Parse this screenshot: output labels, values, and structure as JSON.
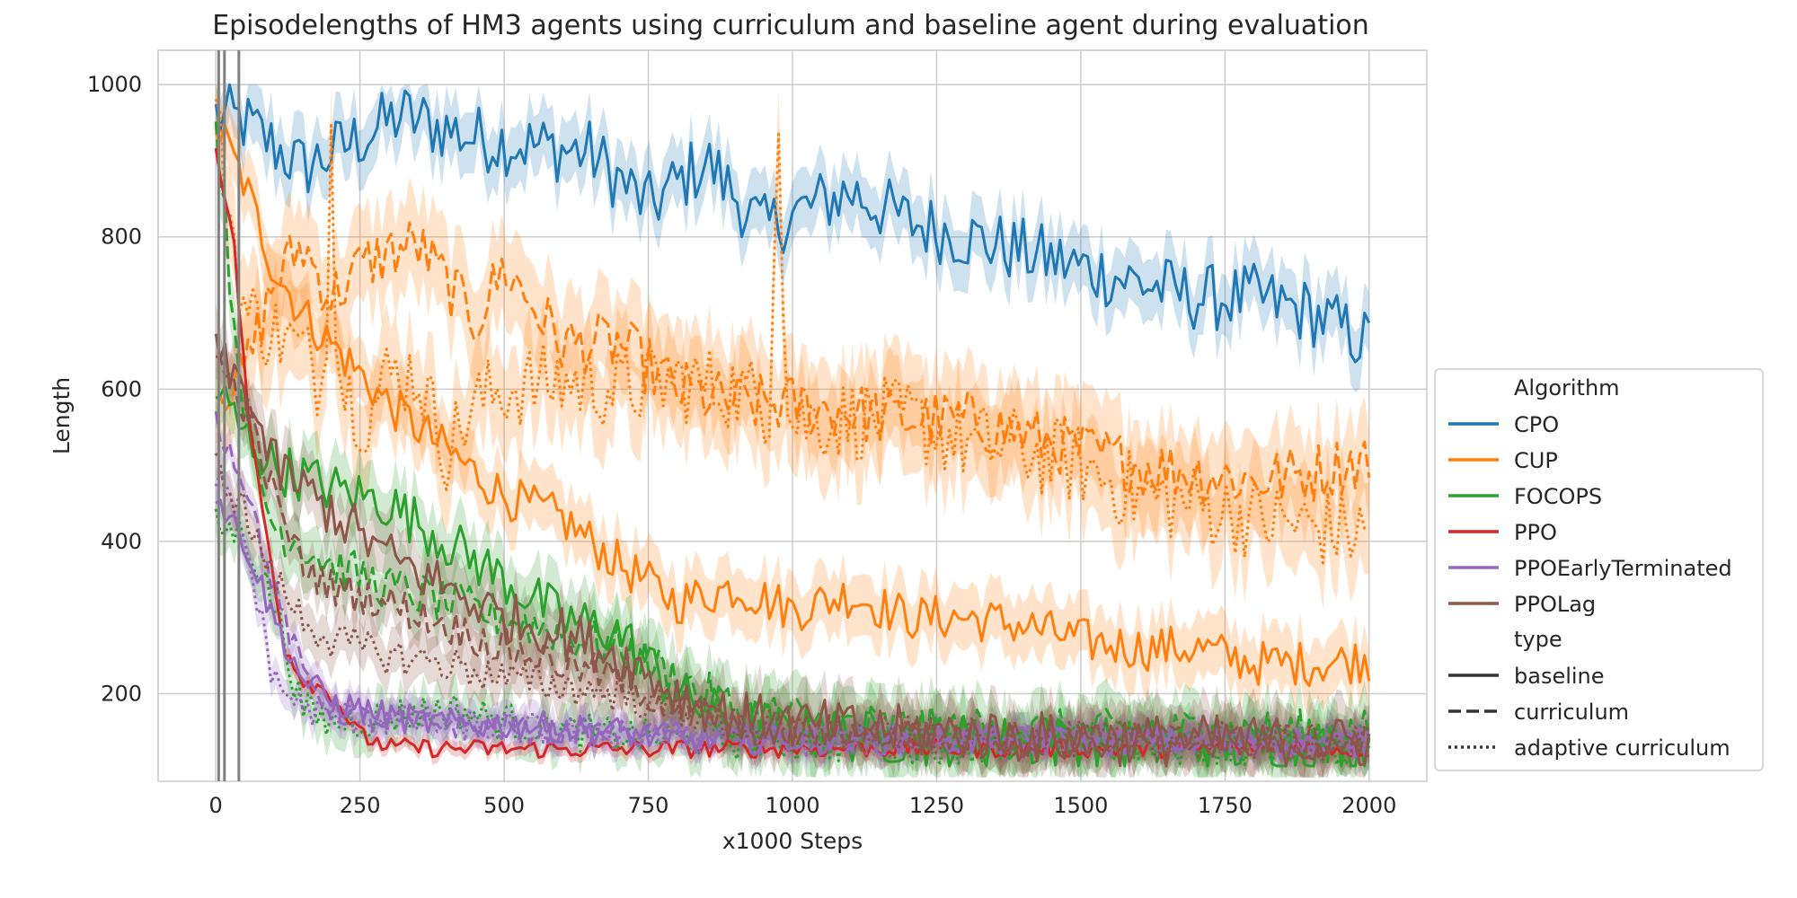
{
  "chart_data": {
    "type": "line",
    "title": "Episodelengths of HM3 agents using curriculum and baseline agent during evaluation",
    "xlabel": "x1000 Steps",
    "ylabel": "Length",
    "xlim": [
      -100,
      2100
    ],
    "ylim": [
      85,
      1045
    ],
    "x_ticks": [
      "0",
      "250",
      "500",
      "750",
      "1000",
      "1250",
      "1500",
      "1750",
      "2000"
    ],
    "y_ticks": [
      "200",
      "400",
      "600",
      "800",
      "1000"
    ],
    "grid": true,
    "legend_position": "right",
    "legend": {
      "algorithm_heading": "Algorithm",
      "type_heading": "type",
      "algorithms": [
        {
          "name": "CPO",
          "color": "#1f77b4"
        },
        {
          "name": "CUP",
          "color": "#ff7f0e"
        },
        {
          "name": "FOCOPS",
          "color": "#2ca02c"
        },
        {
          "name": "PPO",
          "color": "#d62728"
        },
        {
          "name": "PPOEarlyTerminated",
          "color": "#9467bd"
        },
        {
          "name": "PPOLag",
          "color": "#8c564b"
        }
      ],
      "types": [
        {
          "name": "baseline",
          "dash": "solid"
        },
        {
          "name": "curriculum",
          "dash": "dashed"
        },
        {
          "name": "adaptive curriculum",
          "dash": "dotted"
        }
      ]
    },
    "vertical_markers": [
      5,
      15,
      40
    ],
    "series": [
      {
        "algorithm": "CPO",
        "type": "baseline",
        "color": "#1f77b4",
        "dash": "solid",
        "noise": 45,
        "band": 40,
        "points": [
          [
            0,
            960
          ],
          [
            50,
            950
          ],
          [
            150,
            890
          ],
          [
            250,
            930
          ],
          [
            320,
            960
          ],
          [
            450,
            930
          ],
          [
            550,
            920
          ],
          [
            650,
            910
          ],
          [
            750,
            840
          ],
          [
            850,
            900
          ],
          [
            950,
            810
          ],
          [
            1000,
            830
          ],
          [
            1100,
            860
          ],
          [
            1200,
            820
          ],
          [
            1300,
            800
          ],
          [
            1400,
            780
          ],
          [
            1500,
            760
          ],
          [
            1600,
            740
          ],
          [
            1700,
            720
          ],
          [
            1800,
            720
          ],
          [
            1900,
            700
          ],
          [
            2000,
            660
          ]
        ]
      },
      {
        "algorithm": "CUP",
        "type": "baseline",
        "color": "#ff7f0e",
        "dash": "solid",
        "noise": 30,
        "band": 40,
        "points": [
          [
            0,
            950
          ],
          [
            50,
            870
          ],
          [
            100,
            760
          ],
          [
            150,
            700
          ],
          [
            200,
            660
          ],
          [
            250,
            620
          ],
          [
            300,
            580
          ],
          [
            400,
            520
          ],
          [
            500,
            460
          ],
          [
            600,
            430
          ],
          [
            700,
            370
          ],
          [
            800,
            320
          ],
          [
            900,
            340
          ],
          [
            1000,
            310
          ],
          [
            1100,
            330
          ],
          [
            1200,
            300
          ],
          [
            1300,
            300
          ],
          [
            1400,
            290
          ],
          [
            1500,
            270
          ],
          [
            1600,
            260
          ],
          [
            1700,
            260
          ],
          [
            1800,
            240
          ],
          [
            1900,
            240
          ],
          [
            2000,
            245
          ]
        ]
      },
      {
        "algorithm": "CUP",
        "type": "curriculum",
        "color": "#ff7f0e",
        "dash": "dashed",
        "noise": 40,
        "band": 60,
        "points": [
          [
            0,
            600
          ],
          [
            50,
            620
          ],
          [
            100,
            740
          ],
          [
            150,
            790
          ],
          [
            200,
            720
          ],
          [
            250,
            760
          ],
          [
            300,
            780
          ],
          [
            350,
            790
          ],
          [
            450,
            690
          ],
          [
            500,
            760
          ],
          [
            600,
            660
          ],
          [
            700,
            660
          ],
          [
            800,
            600
          ],
          [
            900,
            580
          ],
          [
            1000,
            580
          ],
          [
            1100,
            570
          ],
          [
            1200,
            560
          ],
          [
            1300,
            560
          ],
          [
            1400,
            540
          ],
          [
            1500,
            520
          ],
          [
            1600,
            500
          ],
          [
            1700,
            490
          ],
          [
            1800,
            480
          ],
          [
            1900,
            490
          ],
          [
            2000,
            510
          ]
        ]
      },
      {
        "algorithm": "CUP",
        "type": "adaptive curriculum",
        "color": "#ff7f0e",
        "dash": "dotted",
        "noise": 55,
        "band": 60,
        "points": [
          [
            0,
            960
          ],
          [
            50,
            700
          ],
          [
            150,
            650
          ],
          [
            190,
            600
          ],
          [
            200,
            1000
          ],
          [
            210,
            620
          ],
          [
            260,
            560
          ],
          [
            300,
            620
          ],
          [
            350,
            620
          ],
          [
            400,
            520
          ],
          [
            450,
            580
          ],
          [
            500,
            600
          ],
          [
            600,
            610
          ],
          [
            700,
            600
          ],
          [
            800,
            610
          ],
          [
            900,
            600
          ],
          [
            960,
            580
          ],
          [
            975,
            1000
          ],
          [
            990,
            560
          ],
          [
            1100,
            560
          ],
          [
            1200,
            560
          ],
          [
            1300,
            530
          ],
          [
            1400,
            520
          ],
          [
            1500,
            500
          ],
          [
            1600,
            460
          ],
          [
            1700,
            450
          ],
          [
            1800,
            430
          ],
          [
            1900,
            420
          ],
          [
            2000,
            410
          ]
        ]
      },
      {
        "algorithm": "FOCOPS",
        "type": "baseline",
        "color": "#2ca02c",
        "dash": "solid",
        "noise": 35,
        "band": 40,
        "points": [
          [
            0,
            600
          ],
          [
            50,
            540
          ],
          [
            100,
            500
          ],
          [
            200,
            470
          ],
          [
            300,
            450
          ],
          [
            400,
            400
          ],
          [
            500,
            350
          ],
          [
            600,
            300
          ],
          [
            700,
            280
          ],
          [
            800,
            200
          ],
          [
            900,
            160
          ],
          [
            1000,
            150
          ],
          [
            1200,
            140
          ],
          [
            1500,
            135
          ],
          [
            1800,
            130
          ],
          [
            2000,
            130
          ]
        ]
      },
      {
        "algorithm": "FOCOPS",
        "type": "curriculum",
        "color": "#2ca02c",
        "dash": "dashed",
        "noise": 30,
        "band": 40,
        "points": [
          [
            0,
            960
          ],
          [
            30,
            700
          ],
          [
            60,
            520
          ],
          [
            100,
            420
          ],
          [
            200,
            370
          ],
          [
            300,
            340
          ],
          [
            400,
            320
          ],
          [
            500,
            300
          ],
          [
            600,
            280
          ],
          [
            700,
            260
          ],
          [
            800,
            220
          ],
          [
            900,
            180
          ],
          [
            1000,
            170
          ],
          [
            1100,
            160
          ],
          [
            1200,
            155
          ],
          [
            1400,
            150
          ],
          [
            1600,
            150
          ],
          [
            1800,
            150
          ],
          [
            2000,
            150
          ]
        ]
      },
      {
        "algorithm": "FOCOPS",
        "type": "adaptive curriculum",
        "color": "#2ca02c",
        "dash": "dotted",
        "noise": 25,
        "band": 30,
        "points": [
          [
            0,
            420
          ],
          [
            50,
            410
          ],
          [
            100,
            320
          ],
          [
            150,
            180
          ],
          [
            200,
            160
          ],
          [
            300,
            170
          ],
          [
            400,
            180
          ],
          [
            500,
            165
          ],
          [
            600,
            150
          ],
          [
            700,
            145
          ],
          [
            800,
            140
          ],
          [
            1000,
            135
          ],
          [
            1500,
            132
          ],
          [
            2000,
            130
          ]
        ]
      },
      {
        "algorithm": "PPO",
        "type": "baseline",
        "color": "#d62728",
        "dash": "solid",
        "noise": 12,
        "band": 10,
        "points": [
          [
            0,
            920
          ],
          [
            30,
            800
          ],
          [
            60,
            540
          ],
          [
            90,
            400
          ],
          [
            120,
            260
          ],
          [
            150,
            220
          ],
          [
            200,
            200
          ],
          [
            250,
            145
          ],
          [
            300,
            130
          ],
          [
            400,
            128
          ],
          [
            600,
            127
          ],
          [
            1000,
            128
          ],
          [
            1500,
            128
          ],
          [
            2000,
            128
          ]
        ]
      },
      {
        "algorithm": "PPOEarlyTerminated",
        "type": "baseline",
        "color": "#9467bd",
        "dash": "solid",
        "noise": 20,
        "band": 20,
        "points": [
          [
            0,
            460
          ],
          [
            50,
            400
          ],
          [
            100,
            300
          ],
          [
            150,
            220
          ],
          [
            200,
            190
          ],
          [
            300,
            170
          ],
          [
            400,
            160
          ],
          [
            500,
            160
          ],
          [
            600,
            155
          ],
          [
            700,
            150
          ],
          [
            800,
            140
          ],
          [
            1000,
            140
          ],
          [
            1500,
            138
          ],
          [
            2000,
            135
          ]
        ]
      },
      {
        "algorithm": "PPOEarlyTerminated",
        "type": "curriculum",
        "color": "#9467bd",
        "dash": "dashed",
        "noise": 18,
        "band": 20,
        "points": [
          [
            0,
            560
          ],
          [
            50,
            480
          ],
          [
            100,
            340
          ],
          [
            150,
            230
          ],
          [
            200,
            180
          ],
          [
            300,
            160
          ],
          [
            400,
            160
          ],
          [
            600,
            150
          ],
          [
            800,
            145
          ],
          [
            1000,
            140
          ],
          [
            1500,
            138
          ],
          [
            2000,
            135
          ]
        ]
      },
      {
        "algorithm": "PPOEarlyTerminated",
        "type": "adaptive curriculum",
        "color": "#9467bd",
        "dash": "dotted",
        "noise": 22,
        "band": 20,
        "points": [
          [
            0,
            490
          ],
          [
            50,
            400
          ],
          [
            100,
            220
          ],
          [
            150,
            180
          ],
          [
            200,
            170
          ],
          [
            400,
            160
          ],
          [
            600,
            150
          ],
          [
            800,
            145
          ],
          [
            1000,
            140
          ],
          [
            1500,
            140
          ],
          [
            2000,
            138
          ]
        ]
      },
      {
        "algorithm": "PPOLag",
        "type": "baseline",
        "color": "#8c564b",
        "dash": "solid",
        "noise": 35,
        "band": 40,
        "points": [
          [
            0,
            640
          ],
          [
            50,
            600
          ],
          [
            100,
            500
          ],
          [
            150,
            470
          ],
          [
            200,
            440
          ],
          [
            300,
            380
          ],
          [
            400,
            340
          ],
          [
            500,
            300
          ],
          [
            600,
            280
          ],
          [
            700,
            250
          ],
          [
            800,
            200
          ],
          [
            900,
            170
          ],
          [
            1000,
            160
          ],
          [
            1200,
            150
          ],
          [
            1500,
            140
          ],
          [
            2000,
            135
          ]
        ]
      },
      {
        "algorithm": "PPOLag",
        "type": "curriculum",
        "color": "#8c564b",
        "dash": "dashed",
        "noise": 25,
        "band": 30,
        "points": [
          [
            0,
            640
          ],
          [
            50,
            580
          ],
          [
            100,
            460
          ],
          [
            150,
            370
          ],
          [
            200,
            340
          ],
          [
            300,
            320
          ],
          [
            400,
            290
          ],
          [
            500,
            260
          ],
          [
            600,
            240
          ],
          [
            700,
            220
          ],
          [
            800,
            180
          ],
          [
            900,
            160
          ],
          [
            1000,
            150
          ],
          [
            1500,
            140
          ],
          [
            2000,
            135
          ]
        ]
      },
      {
        "algorithm": "PPOLag",
        "type": "adaptive curriculum",
        "color": "#8c564b",
        "dash": "dotted",
        "noise": 25,
        "band": 30,
        "points": [
          [
            0,
            500
          ],
          [
            50,
            440
          ],
          [
            100,
            350
          ],
          [
            150,
            300
          ],
          [
            200,
            270
          ],
          [
            300,
            250
          ],
          [
            400,
            240
          ],
          [
            500,
            220
          ],
          [
            600,
            210
          ],
          [
            700,
            200
          ],
          [
            800,
            180
          ],
          [
            900,
            160
          ],
          [
            1000,
            150
          ],
          [
            1500,
            140
          ],
          [
            2000,
            135
          ]
        ]
      }
    ]
  }
}
